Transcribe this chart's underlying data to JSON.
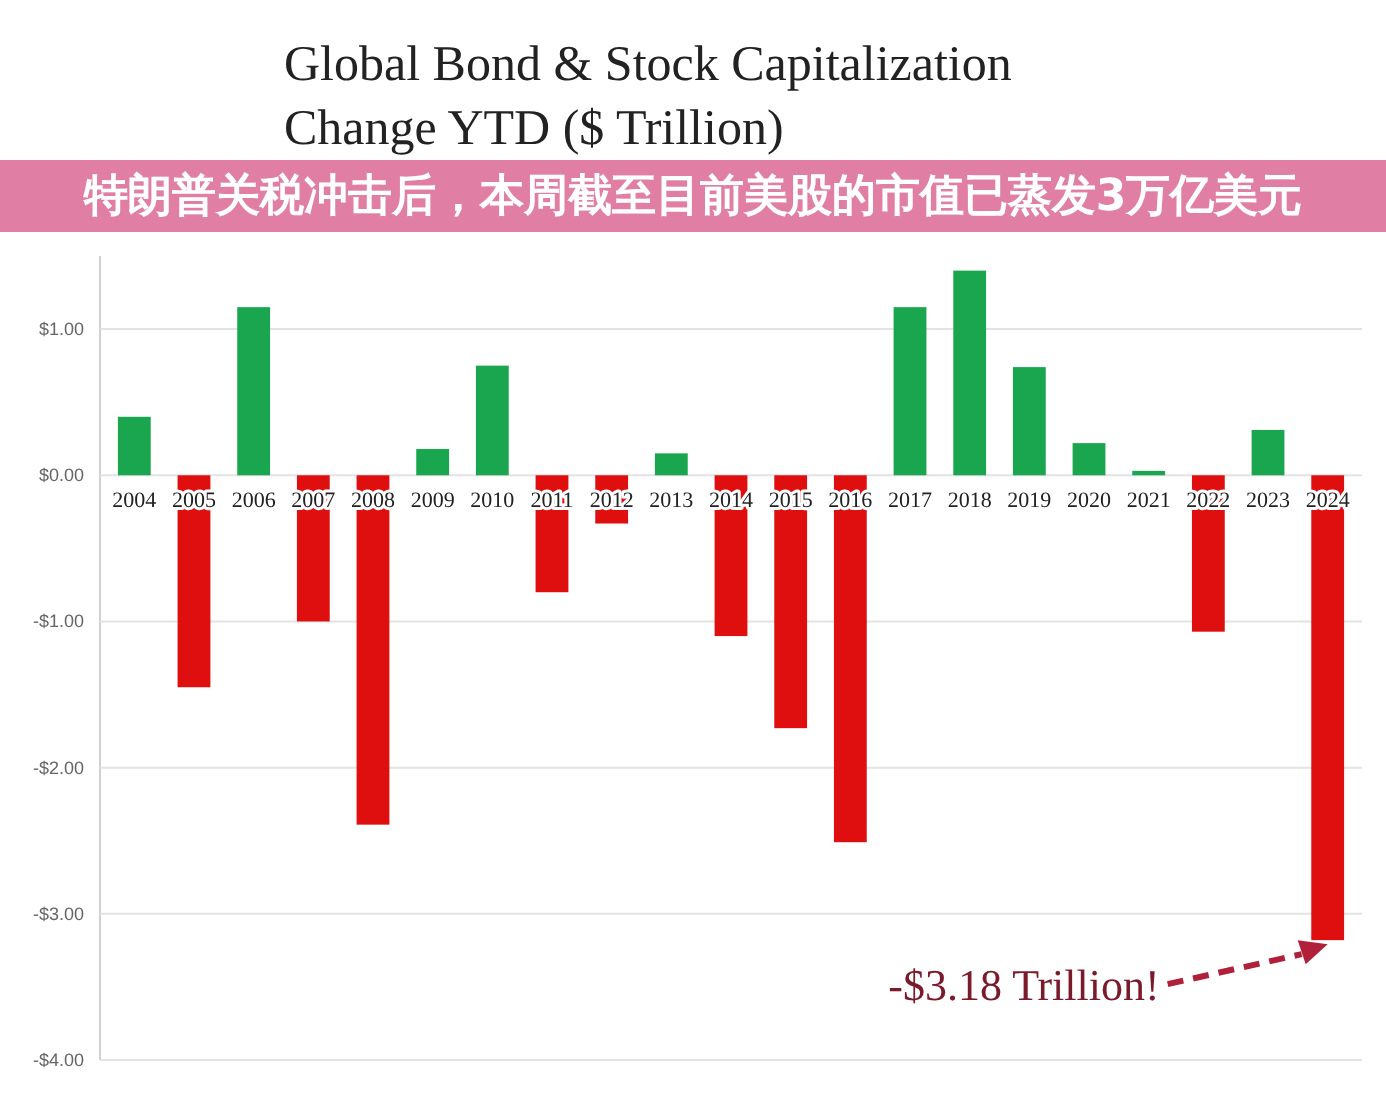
{
  "chart_data": {
    "type": "bar",
    "title": "Global Bond & Stock Capitalization\nChange YTD ($ Trillion)",
    "subtitle": "特朗普关税冲击后，本周截至目前美股的市值已蒸发3万亿美元",
    "categories": [
      "2004",
      "2005",
      "2006",
      "2007",
      "2008",
      "2009",
      "2010",
      "2011",
      "2012",
      "2013",
      "2014",
      "2015",
      "2016",
      "2017",
      "2018",
      "2019",
      "2020",
      "2021",
      "2022",
      "2023",
      "2024"
    ],
    "values": [
      0.4,
      -1.45,
      1.15,
      -1.0,
      -2.39,
      0.18,
      0.75,
      -0.8,
      -0.33,
      0.15,
      -1.1,
      -1.73,
      -2.51,
      1.15,
      1.4,
      0.74,
      0.22,
      0.03,
      -1.07,
      0.31,
      -3.18
    ],
    "colors": [
      "#1aa64f",
      "#e00f0f",
      "#1aa64f",
      "#e00f0f",
      "#e00f0f",
      "#1aa64f",
      "#1aa64f",
      "#e00f0f",
      "#e00f0f",
      "#1aa64f",
      "#e00f0f",
      "#e00f0f",
      "#e00f0f",
      "#1aa64f",
      "#1aa64f",
      "#1aa64f",
      "#1aa64f",
      "#1aa64f",
      "#e00f0f",
      "#1aa64f",
      "#e00f0f"
    ],
    "ylim": [
      -4,
      1.5
    ],
    "yticks": [
      {
        "value": -4,
        "label": "-$4.00"
      },
      {
        "value": -3,
        "label": "-$3.00"
      },
      {
        "value": -2,
        "label": "-$2.00"
      },
      {
        "value": -1,
        "label": "-$1.00"
      },
      {
        "value": 0,
        "label": "$0.00"
      },
      {
        "value": 1,
        "label": "$1.00"
      }
    ],
    "grid": "y",
    "annotations": [
      "-$3.18 Trillion!"
    ]
  }
}
